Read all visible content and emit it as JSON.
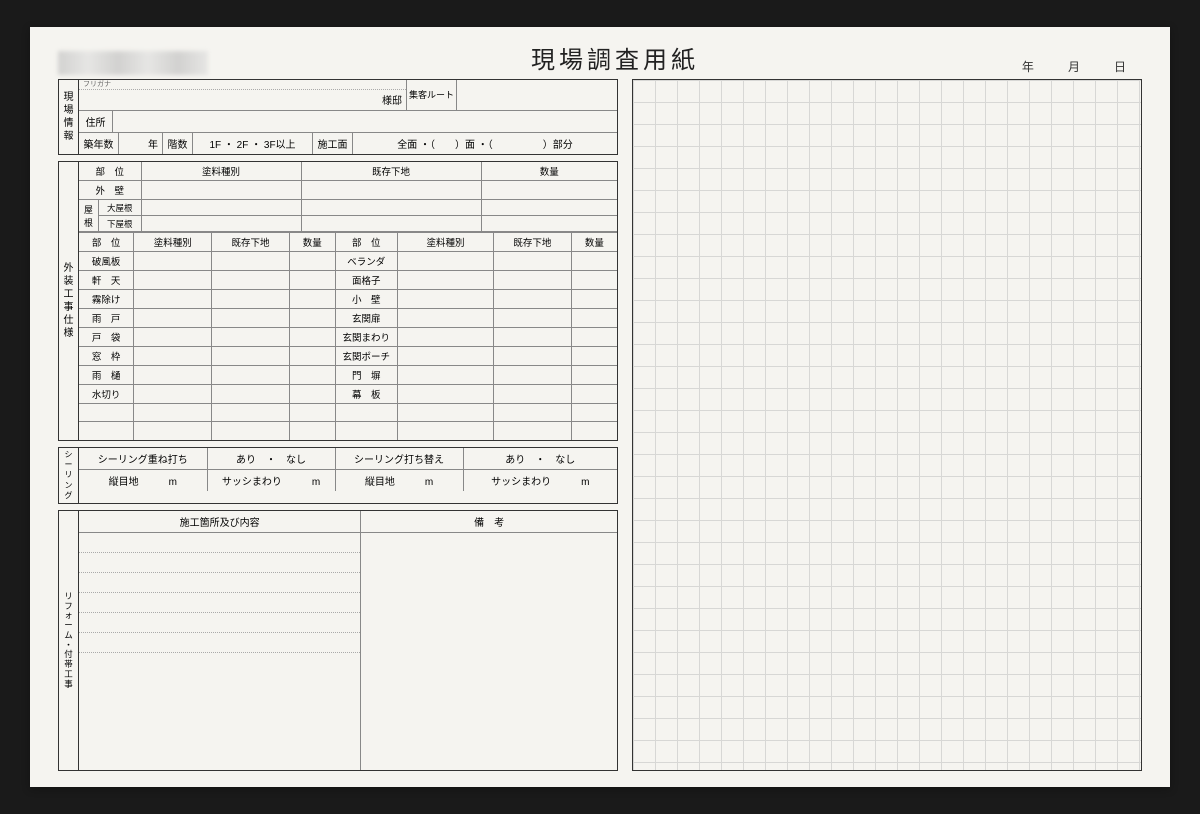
{
  "title": "現場調査用紙",
  "date": {
    "year": "年",
    "month": "月",
    "day": "日"
  },
  "siteInfo": {
    "sectionLabel": "現場情報",
    "furigana": "フリガナ",
    "nameSuffix": "様邸",
    "routeLabel": "集客ルート",
    "addressLabel": "住所",
    "row3": {
      "ageLabel": "築年数",
      "ageUnit": "年",
      "floorsLabel": "階数",
      "floorsOpts": "1F ・ 2F ・ 3F以上",
      "areaLabel": "施工面",
      "areaOpts": "全面 ・（　　）面 ・（　　　　　）部分"
    }
  },
  "extSpec": {
    "sectionLabel": "外装工事仕様",
    "top": {
      "h_part": "部　位",
      "h_paint": "塗料種別",
      "h_base": "既存下地",
      "h_qty": "数量",
      "r_wall": "外　壁",
      "r_roof": "屋根",
      "r_roof_up": "大屋根",
      "r_roof_low": "下屋根"
    },
    "bot": {
      "h_part": "部　位",
      "h_paint": "塗料種別",
      "h_base": "既存下地",
      "h_qty": "数量",
      "leftRows": [
        "破風板",
        "軒　天",
        "霧除け",
        "雨　戸",
        "戸　袋",
        "窓　枠",
        "雨　樋",
        "水切り",
        "",
        ""
      ],
      "rightRows": [
        "ベランダ",
        "面格子",
        "小　壁",
        "玄関扉",
        "玄関まわり",
        "玄関ポーチ",
        "門　塀",
        "幕　板",
        "",
        ""
      ]
    }
  },
  "sealing": {
    "sectionLabel": "シーリング",
    "r1": {
      "a": "シーリング重ね打ち",
      "b": "あり　・　なし",
      "c": "シーリング打ち替え",
      "d": "あり　・　なし"
    },
    "r2": {
      "a": "縦目地",
      "au": "m",
      "b": "サッシまわり",
      "bu": "m",
      "c": "縦目地",
      "cu": "m",
      "d": "サッシまわり",
      "du": "m"
    }
  },
  "reform": {
    "sectionLabel": "リフォーム・付帯工事",
    "leftHdr": "施工箇所及び内容",
    "rightHdr": "備　考"
  },
  "colors": {
    "paper": "#f5f4f0",
    "border": "#333333",
    "subborder": "#888888",
    "dotted": "#aaaaaa",
    "grid": "#bbbbbb"
  }
}
